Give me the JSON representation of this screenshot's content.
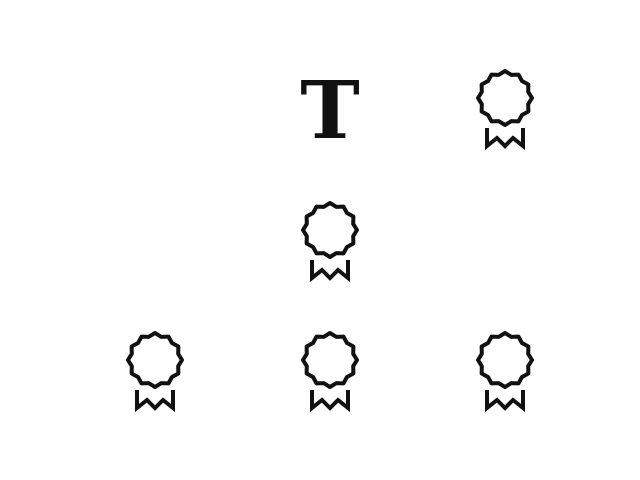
{
  "grid": {
    "cells": [
      {
        "row": 0,
        "col": 1,
        "kind": "text",
        "text": "T"
      },
      {
        "row": 0,
        "col": 2,
        "kind": "icon",
        "icon": "award-ribbon-icon"
      },
      {
        "row": 1,
        "col": 1,
        "kind": "icon",
        "icon": "award-ribbon-icon"
      },
      {
        "row": 2,
        "col": 0,
        "kind": "icon",
        "icon": "award-ribbon-icon"
      },
      {
        "row": 2,
        "col": 1,
        "kind": "icon",
        "icon": "award-ribbon-icon"
      },
      {
        "row": 2,
        "col": 2,
        "kind": "icon",
        "icon": "award-ribbon-icon"
      }
    ]
  },
  "colors": {
    "ink": "#111111",
    "background": "#ffffff"
  }
}
